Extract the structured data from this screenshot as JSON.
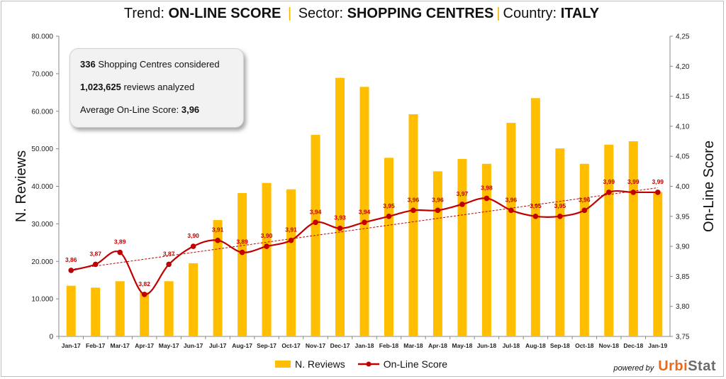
{
  "title": {
    "trend_label": "Trend:",
    "trend_value": "ON-LINE SCORE",
    "sector_label": "Sector:",
    "sector_value": "SHOPPING CENTRES",
    "country_label": "Country:",
    "country_value": "ITALY",
    "separator": "|"
  },
  "info_box": {
    "count": "336",
    "count_text": "Shopping Centres considered",
    "reviews": "1,023,625",
    "reviews_text": "reviews analyzed",
    "avg_text": "Average On-Line Score:",
    "avg_value": "3,96"
  },
  "legend": {
    "bars": "N. Reviews",
    "line": "On-Line Score"
  },
  "powered": {
    "by": "powered by",
    "brand_a": "Urbi",
    "brand_b": "Stat"
  },
  "colors": {
    "bars": "#ffbf00",
    "line": "#c00000",
    "trend": "#c00000"
  },
  "chart_data": {
    "type": "bar",
    "categories": [
      "Jan-17",
      "Feb-17",
      "Mar-17",
      "Apr-17",
      "May-17",
      "Jun-17",
      "Jul-17",
      "Aug-17",
      "Sep-17",
      "Oct-17",
      "Nov-17",
      "Dec-17",
      "Jan-18",
      "Feb-18",
      "Mar-18",
      "Apr-18",
      "May-18",
      "Jun-18",
      "Jul-18",
      "Aug-18",
      "Sep-18",
      "Oct-18",
      "Nov-18",
      "Dec-18",
      "Jan-19"
    ],
    "series": [
      {
        "name": "N. Reviews",
        "type": "bar",
        "axis": "left",
        "values": [
          13500,
          13000,
          14700,
          11800,
          14700,
          19500,
          31000,
          38200,
          40900,
          39200,
          53700,
          68900,
          66500,
          47600,
          59200,
          44000,
          47300,
          46000,
          56900,
          63500,
          50100,
          46000,
          51100,
          52000,
          38500
        ]
      },
      {
        "name": "On-Line Score",
        "type": "line",
        "axis": "right",
        "values": [
          3.86,
          3.87,
          3.89,
          3.82,
          3.87,
          3.9,
          3.91,
          3.89,
          3.9,
          3.91,
          3.94,
          3.93,
          3.94,
          3.95,
          3.96,
          3.96,
          3.97,
          3.98,
          3.96,
          3.95,
          3.95,
          3.96,
          3.99,
          3.99,
          3.99
        ],
        "labels": [
          "3,86",
          "3,87",
          "3,89",
          "3,82",
          "3,87",
          "3,90",
          "3,91",
          "3,89",
          "3,90",
          "3,91",
          "3,94",
          "3,93",
          "3,94",
          "3,95",
          "3,96",
          "3,96",
          "3,97",
          "3,98",
          "3,96",
          "3,95",
          "3,95",
          "3,96",
          "3,99",
          "3,99",
          "3,99"
        ],
        "trendline": true
      }
    ],
    "ylabel": "N. Reviews",
    "y2label": "On-Line Score",
    "ylim": [
      0,
      80000
    ],
    "y2lim": [
      3.75,
      4.25
    ],
    "yticks": [
      "0",
      "10.000",
      "20.000",
      "30.000",
      "40.000",
      "50.000",
      "60.000",
      "70.000",
      "80.000"
    ],
    "y2ticks": [
      "3,75",
      "3,80",
      "3,85",
      "3,90",
      "3,95",
      "4,00",
      "4,05",
      "4,10",
      "4,15",
      "4,20",
      "4,25"
    ],
    "grid": false,
    "legend_position": "bottom"
  }
}
